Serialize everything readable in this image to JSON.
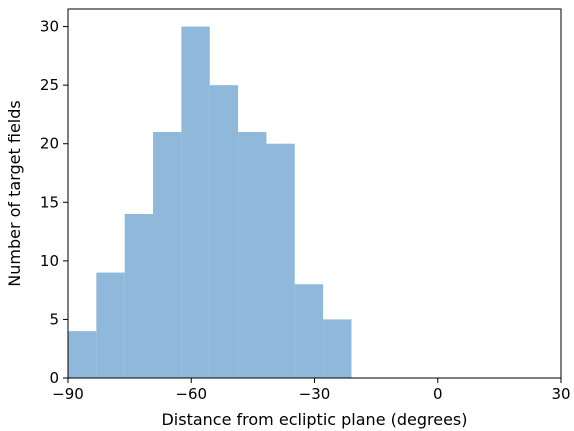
{
  "chart_data": {
    "type": "bar",
    "title": "",
    "xlabel": "Distance from ecliptic plane (degrees)",
    "ylabel": "Number of target fields",
    "bin_edges": [
      -90,
      -83.1,
      -76.2,
      -69.3,
      -62.4,
      -55.5,
      -48.6,
      -41.7,
      -34.8,
      -27.9,
      -21.0
    ],
    "values": [
      4,
      9,
      14,
      21,
      30,
      25,
      21,
      20,
      8,
      5
    ],
    "xlim": [
      -90,
      30
    ],
    "ylim": [
      0,
      31.5
    ],
    "xticks": [
      -90,
      -60,
      -30,
      0,
      30
    ],
    "xtick_labels": [
      "−90",
      "−60",
      "−30",
      "0",
      "30"
    ],
    "yticks": [
      0,
      5,
      10,
      15,
      20,
      25,
      30
    ],
    "ytick_labels": [
      "0",
      "5",
      "10",
      "15",
      "20",
      "25",
      "30"
    ],
    "bar_color": "#8fb8da",
    "grid": false,
    "legend": "none"
  }
}
